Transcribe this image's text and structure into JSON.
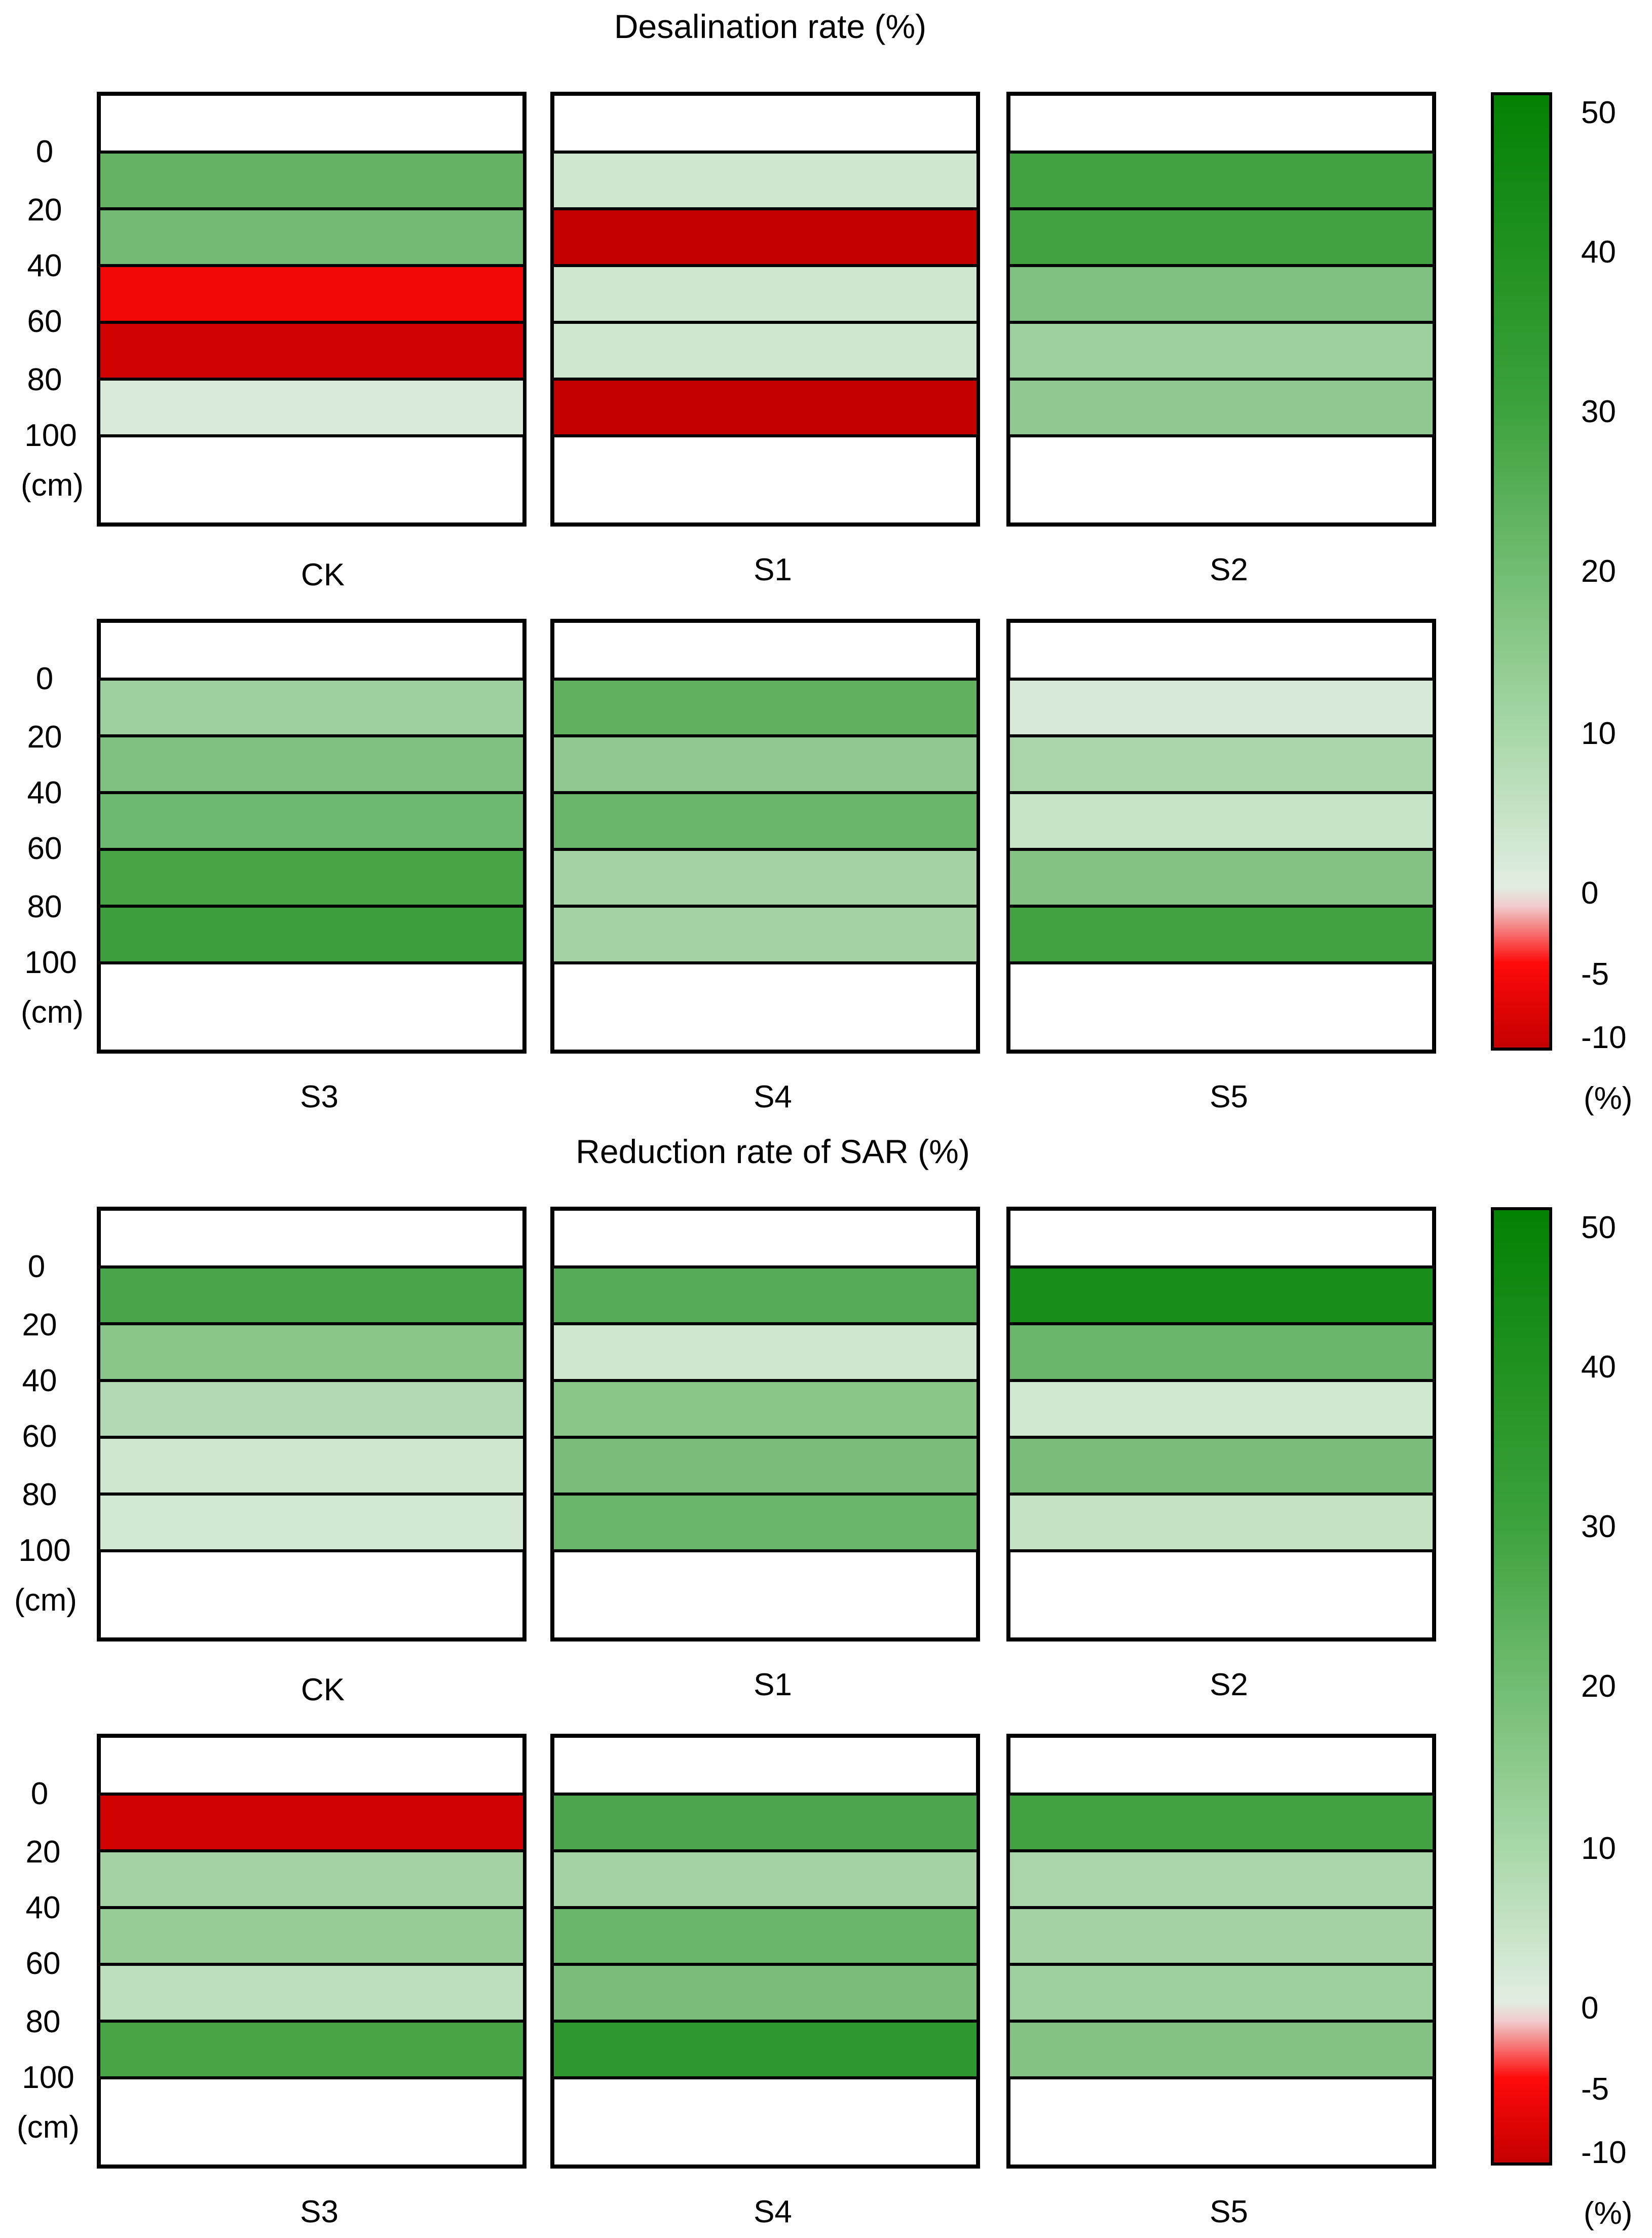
{
  "chart_data": [
    {
      "type": "heatmap",
      "title": "Desalination rate (%)",
      "depth_ticks": [
        "0",
        "20",
        "40",
        "60",
        "80",
        "100"
      ],
      "depth_unit": "(cm)",
      "layers": [
        "0-20",
        "20-40",
        "40-60",
        "60-80",
        "80-100"
      ],
      "treatments": [
        "CK",
        "S1",
        "S2",
        "S3",
        "S4",
        "S5"
      ],
      "values": {
        "CK": [
          26,
          23,
          -6,
          -9,
          3
        ],
        "S1": [
          7,
          -10,
          7,
          7,
          -10
        ],
        "S2": [
          34,
          34,
          21,
          16,
          18
        ],
        "S3": [
          16,
          21,
          24,
          33,
          36
        ],
        "S4": [
          27,
          18,
          25,
          15,
          15
        ],
        "S5": [
          4,
          14,
          9,
          20,
          34
        ]
      },
      "colorbar": {
        "ticks": [
          "50",
          "40",
          "30",
          "20",
          "10",
          "0",
          "-5",
          "-10"
        ],
        "unit": "(%)"
      }
    },
    {
      "type": "heatmap",
      "title": "Reduction rate of SAR (%)",
      "depth_ticks": [
        "0",
        "20",
        "40",
        "60",
        "80",
        "100"
      ],
      "depth_unit": "(cm)",
      "layers": [
        "0-20",
        "20-40",
        "40-60",
        "60-80",
        "80-100"
      ],
      "treatments": [
        "CK",
        "S1",
        "S2",
        "S3",
        "S4",
        "S5"
      ],
      "values": {
        "CK": [
          32,
          19,
          13,
          7,
          5
        ],
        "S1": [
          29,
          7,
          19,
          22,
          25
        ],
        "S2": [
          45,
          25,
          6,
          22,
          10
        ],
        "S3": [
          -9,
          15,
          17,
          11,
          33
        ],
        "S4": [
          31,
          15,
          25,
          22,
          40
        ],
        "S5": [
          34,
          14,
          15,
          16,
          20
        ]
      },
      "colorbar": {
        "ticks": [
          "50",
          "40",
          "30",
          "20",
          "10",
          "0",
          "-5",
          "-10"
        ],
        "unit": "(%)"
      }
    }
  ]
}
